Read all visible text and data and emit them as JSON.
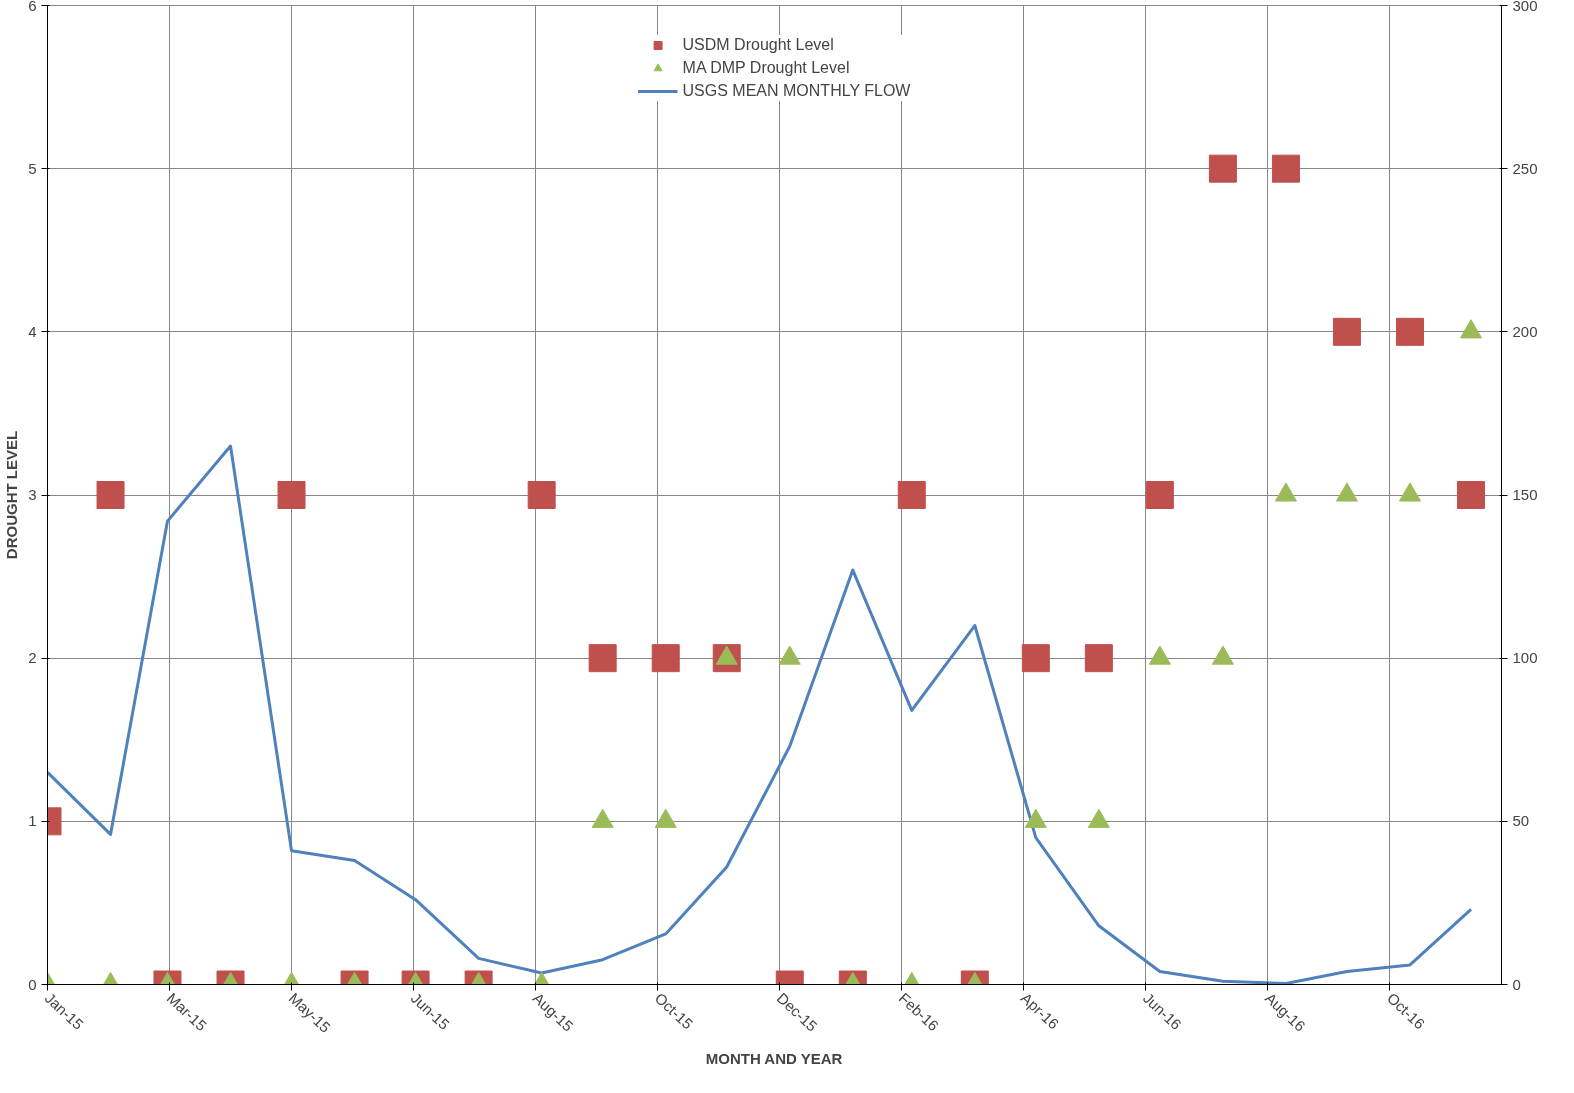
{
  "chart_data": {
    "type": "scatter",
    "xlabel": "MONTH AND YEAR",
    "ylabel": "DROUGHT LEVEL",
    "x": [
      "2015-01-01",
      "2015-02-01",
      "2015-03-01",
      "2015-04-01",
      "2015-05-01",
      "2015-06-01",
      "2015-07-01",
      "2015-08-01",
      "2015-09-01",
      "2015-10-01",
      "2015-11-01",
      "2015-12-01",
      "2016-01-01",
      "2016-02-01",
      "2016-03-01",
      "2016-04-01",
      "2016-05-01",
      "2016-06-01",
      "2016-07-01",
      "2016-08-01",
      "2016-09-01",
      "2016-10-01",
      "2016-11-01",
      "2016-12-01"
    ],
    "series": [
      {
        "name": "USDM Drought Level",
        "marker": "square",
        "color": "#c0504d",
        "values": [
          1,
          3,
          0,
          0,
          3,
          0,
          0,
          0,
          3,
          2,
          2,
          2,
          0,
          0,
          3,
          0,
          2,
          2,
          3,
          5,
          5,
          4,
          4,
          3
        ]
      },
      {
        "name": "MA DMP Drought Level",
        "marker": "triangle",
        "color": "#9bbb59",
        "values": [
          0,
          0,
          0,
          0,
          0,
          0,
          0,
          0,
          0,
          1,
          1,
          2,
          2,
          0,
          0,
          0,
          1,
          1,
          2,
          2,
          3,
          3,
          3,
          4
        ]
      },
      {
        "name": "USGS MEAN MONTHLY FLOW",
        "type": "line",
        "axis": "y2",
        "color": "#4f81bd",
        "values": [
          65,
          46,
          142,
          165,
          41,
          38,
          26,
          8,
          3.5,
          7.6,
          15.5,
          36,
          73,
          127,
          84,
          110,
          45,
          18,
          4,
          1,
          0.3,
          4,
          6,
          23
        ]
      }
    ],
    "xlim": [
      "2015-01-01",
      "2016-12-16"
    ],
    "xticks": [
      {
        "value": "2015-01-01",
        "label": "Jan-15"
      },
      {
        "value": "2015-03-02",
        "label": "Mar-15"
      },
      {
        "value": "2015-05-01",
        "label": "May-15"
      },
      {
        "value": "2015-06-30",
        "label": "Jun-15"
      },
      {
        "value": "2015-08-29",
        "label": "Aug-15"
      },
      {
        "value": "2015-10-28",
        "label": "Oct-15"
      },
      {
        "value": "2015-12-27",
        "label": "Dec-15"
      },
      {
        "value": "2016-02-25",
        "label": "Feb-16"
      },
      {
        "value": "2016-04-25",
        "label": "Apr-16"
      },
      {
        "value": "2016-06-24",
        "label": "Jun-16"
      },
      {
        "value": "2016-08-23",
        "label": "Aug-16"
      },
      {
        "value": "2016-10-22",
        "label": "Oct-16"
      }
    ],
    "ylim": [
      0,
      6
    ],
    "yticks": [
      0,
      1,
      2,
      3,
      4,
      5,
      6
    ],
    "y2lim": [
      0,
      300
    ],
    "y2ticks": [
      0,
      50,
      100,
      150,
      200,
      250,
      300
    ],
    "grid": true,
    "legend": "top",
    "line_style": "solid"
  }
}
